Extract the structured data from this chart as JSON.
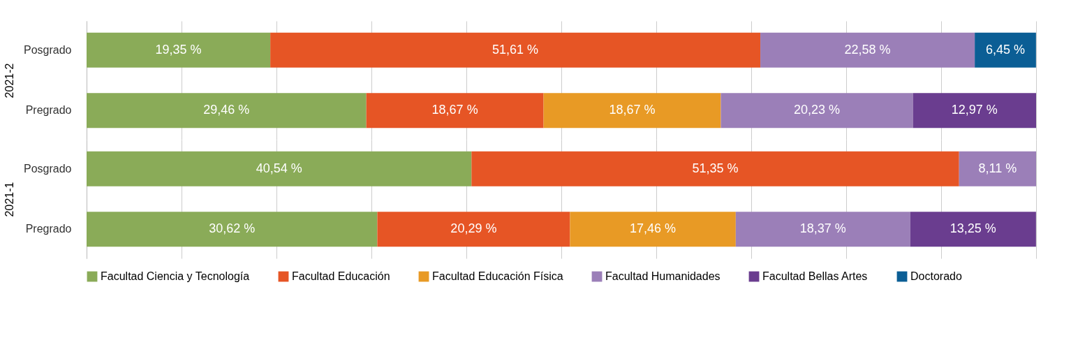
{
  "chart_data": [
    {
      "type": "bar",
      "orientation": "horizontal",
      "stacked": true,
      "ylabel": "2021-2",
      "categories": [
        "Posgrado",
        "Pregrado"
      ],
      "xlim": [
        0,
        100
      ],
      "xticks": [
        {
          "value": 0,
          "label": null
        },
        {
          "value": 10,
          "label": null
        },
        {
          "value": 20,
          "label": null
        },
        {
          "value": 30,
          "label": null
        },
        {
          "value": 40,
          "label": null
        },
        {
          "value": 50,
          "label": null
        },
        {
          "value": 60,
          "label": null
        },
        {
          "value": 70,
          "label": null
        },
        {
          "value": 80,
          "label": null
        },
        {
          "value": 90,
          "label": null
        },
        {
          "value": 100,
          "label": null
        }
      ],
      "grid": "x",
      "tick_labels": "y",
      "legend": false,
      "series": [
        {
          "color": "#8aab58",
          "values": [
            19.35,
            29.46
          ],
          "value_labels": [
            "19,35 %",
            "29,46 %"
          ]
        },
        {
          "color": "#e65525",
          "values": [
            51.61,
            18.67
          ],
          "value_labels": [
            "51,61 %",
            "18,67 %"
          ]
        },
        {
          "color": "#e89a25",
          "values": [
            null,
            18.67
          ],
          "value_labels": [
            null,
            "18,67 %"
          ]
        },
        {
          "color": "#9b7fb8",
          "values": [
            22.58,
            20.23
          ],
          "value_labels": [
            "22,58 %",
            "20,23 %"
          ]
        },
        {
          "color": "#6a3d8f",
          "values": [
            null,
            12.97
          ],
          "value_labels": [
            null,
            "12,97 %"
          ]
        },
        {
          "color": "#0b5e95",
          "values": [
            6.45,
            null
          ],
          "value_labels": [
            "6,45 %",
            null
          ]
        }
      ]
    },
    {
      "type": "bar",
      "orientation": "horizontal",
      "stacked": true,
      "ylabel": "2021-1",
      "categories": [
        "Posgrado",
        "Pregrado"
      ],
      "xlim": [
        0,
        100
      ],
      "xticks": [
        {
          "value": 0,
          "label": null
        },
        {
          "value": 10,
          "label": null
        },
        {
          "value": 20,
          "label": null
        },
        {
          "value": 30,
          "label": null
        },
        {
          "value": 40,
          "label": null
        },
        {
          "value": 50,
          "label": null
        },
        {
          "value": 60,
          "label": null
        },
        {
          "value": 70,
          "label": null
        },
        {
          "value": 80,
          "label": null
        },
        {
          "value": 90,
          "label": null
        },
        {
          "value": 100,
          "label": null
        }
      ],
      "grid": "x",
      "tick_labels": "y",
      "legend": "bottom",
      "series": [
        {
          "name": "Facultad Ciencia y Tecnología",
          "color": "#8aab58",
          "values": [
            40.54,
            30.62
          ],
          "value_labels": [
            "40,54 %",
            "30,62 %"
          ]
        },
        {
          "name": "Facultad Educación",
          "color": "#e65525",
          "values": [
            51.35,
            20.29
          ],
          "value_labels": [
            "51,35 %",
            "20,29 %"
          ]
        },
        {
          "name": "Facultad Educación Física",
          "color": "#e89a25",
          "values": [
            null,
            17.46
          ],
          "value_labels": [
            null,
            "17,46 %"
          ]
        },
        {
          "name": "Facultad Humanidades",
          "color": "#9b7fb8",
          "values": [
            8.11,
            18.37
          ],
          "value_labels": [
            "8,11 %",
            "18,37 %"
          ]
        },
        {
          "name": "Facultad Bellas Artes",
          "color": "#6a3d8f",
          "values": [
            null,
            13.25
          ],
          "value_labels": [
            null,
            "13,25 %"
          ]
        },
        {
          "name": "Doctorado",
          "color": "#0b5e95",
          "values": [
            null,
            null
          ],
          "value_labels": [
            null,
            null
          ]
        }
      ]
    }
  ]
}
